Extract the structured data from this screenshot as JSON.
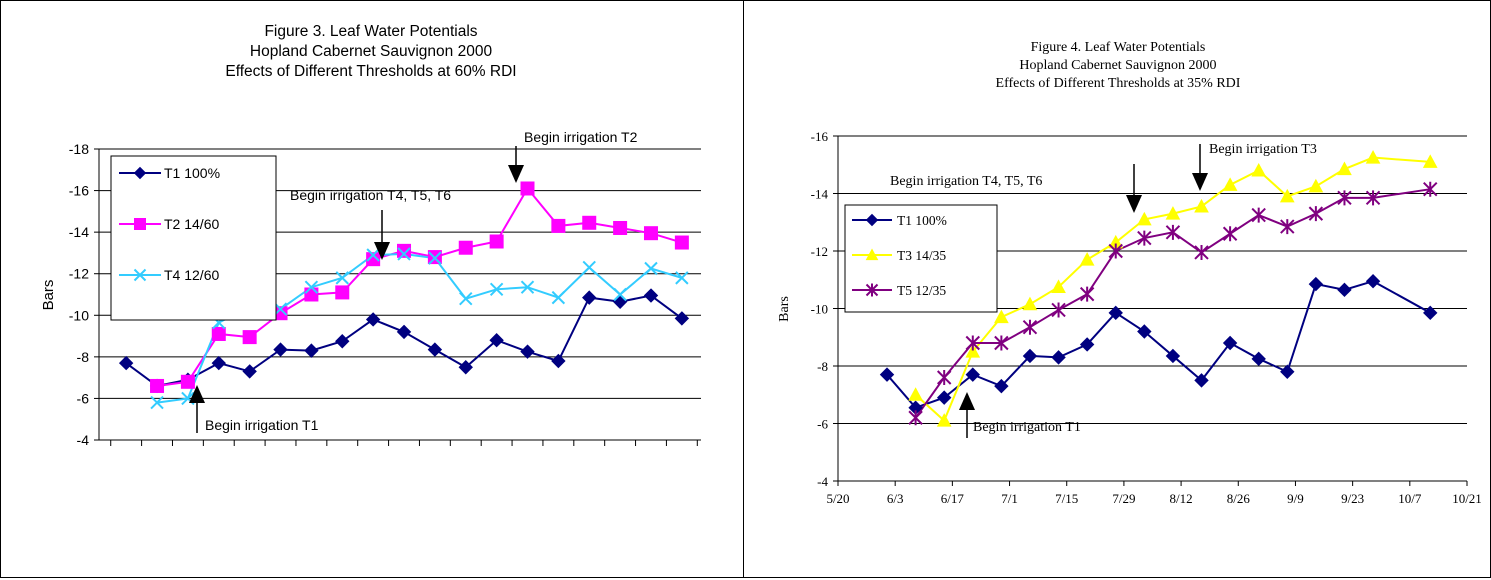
{
  "chart_data": [
    {
      "type": "line",
      "title": [
        "Figure 3. Leaf Water Potentials",
        "Hopland Cabernet Sauvignon 2000",
        "Effects of Different Thresholds at 60% RDI"
      ],
      "ylabel": "Bars",
      "ylim": [
        -4,
        -18
      ],
      "yticks": [
        "-4",
        "-6",
        "-8",
        "-10",
        "-12",
        "-14",
        "-16",
        "-18"
      ],
      "grid": true,
      "legend_position": "top-left",
      "series": [
        {
          "name": "T1 100%",
          "color": "#000080",
          "marker": "diamond",
          "values": [
            -7.7,
            -6.6,
            -6.9,
            -7.7,
            -7.3,
            -8.35,
            -8.3,
            -8.75,
            -9.8,
            -9.2,
            -8.35,
            -7.5,
            -8.8,
            -8.25,
            -7.8,
            -10.85,
            -10.65,
            -10.95,
            -9.85
          ]
        },
        {
          "name": "T2 14/60",
          "color": "#FF00FF",
          "marker": "square",
          "values": [
            null,
            -6.6,
            -6.8,
            -9.1,
            -8.95,
            -10.1,
            -11.0,
            -11.1,
            -12.7,
            -13.1,
            -12.8,
            -13.25,
            -13.55,
            -16.1,
            -14.3,
            -14.45,
            -14.2,
            -13.95,
            -13.5
          ]
        },
        {
          "name": "T4 12/60",
          "color": "#33CCFF",
          "marker": "x",
          "values": [
            null,
            -5.8,
            -6.0,
            -9.65,
            -10.4,
            -10.3,
            -11.35,
            -11.8,
            -12.9,
            -12.95,
            -12.75,
            -10.8,
            -11.25,
            -11.35,
            -10.85,
            -12.3,
            -11.0,
            -12.25,
            -11.8
          ]
        }
      ],
      "annotations": [
        "Begin irrigation T1",
        "Begin irrigation T4, T5,  T6",
        "Begin irrigation T2"
      ]
    },
    {
      "type": "line",
      "title": [
        "Figure 4. Leaf Water Potentials",
        "Hopland Cabernet Sauvignon 2000",
        "Effects of Different Thresholds at 35% RDI"
      ],
      "ylabel": "Bars",
      "ylim": [
        -4,
        -16
      ],
      "yticks": [
        "-4",
        "-6",
        "-8",
        "-10",
        "-12",
        "-14",
        "-16"
      ],
      "xlim": [
        140,
        294
      ],
      "xticks": [
        "5/20",
        "6/3",
        "6/17",
        "7/1",
        "7/15",
        "7/29",
        "8/12",
        "8/26",
        "9/9",
        "9/23",
        "10/7",
        "10/21"
      ],
      "grid": true,
      "legend_position": "middle-left",
      "series": [
        {
          "name": "T1 100%",
          "color": "#000080",
          "marker": "diamond",
          "x": [
            152,
            159,
            166,
            173,
            180,
            187,
            194,
            201,
            208,
            215,
            222,
            229,
            236,
            243,
            250,
            257,
            264,
            271,
            285
          ],
          "values": [
            -7.7,
            -6.55,
            -6.9,
            -7.7,
            -7.3,
            -8.35,
            -8.3,
            -8.75,
            -9.85,
            -9.2,
            -8.35,
            -7.5,
            -8.8,
            -8.25,
            -7.8,
            -10.85,
            -10.65,
            -10.95,
            -9.85
          ]
        },
        {
          "name": "T3 14/35",
          "color": "#FFFF00",
          "marker": "triangle",
          "x": [
            159,
            166,
            173,
            180,
            187,
            194,
            201,
            208,
            215,
            222,
            229,
            236,
            243,
            250,
            257,
            264,
            271,
            285
          ],
          "values": [
            -7.0,
            -6.1,
            -8.5,
            -9.7,
            -10.15,
            -10.75,
            -11.7,
            -12.3,
            -13.1,
            -13.3,
            -13.55,
            -14.3,
            -14.8,
            -13.9,
            -14.25,
            -14.85,
            -15.25,
            -15.1
          ]
        },
        {
          "name": "T5 12/35",
          "color": "#800080",
          "marker": "star",
          "x": [
            159,
            166,
            173,
            180,
            187,
            194,
            201,
            208,
            215,
            222,
            229,
            236,
            243,
            250,
            257,
            264,
            271,
            285
          ],
          "values": [
            -6.2,
            -7.6,
            -8.8,
            -8.8,
            -9.35,
            -9.95,
            -10.5,
            -12.0,
            -12.45,
            -12.65,
            -11.95,
            -12.6,
            -13.25,
            -12.85,
            -13.3,
            -13.85,
            -13.85,
            -14.15
          ]
        }
      ],
      "annotations": [
        "Begin irrigation T1",
        "Begin irrigation T4, T5,  T6",
        "Begin irrigation T3"
      ]
    }
  ]
}
